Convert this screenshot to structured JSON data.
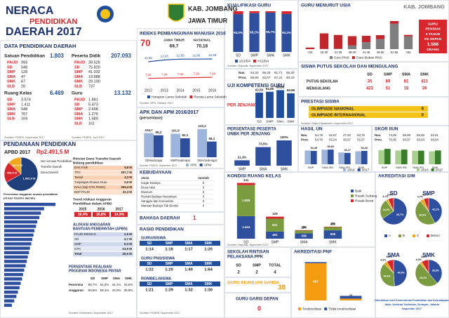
{
  "header": {
    "title1": "NERACA",
    "title2": "PENDIDIKAN",
    "title3": "DAERAH 2017",
    "region": "KAB. JOMBANG",
    "province": "JAWA TIMUR"
  },
  "data_daerah": {
    "title": "DATA PENDIDIKAN DAERAH",
    "groups": [
      {
        "label": "Satuan Pendidikan",
        "total": "1.803",
        "items": [
          [
            "PAUD",
            "993"
          ],
          [
            "SD",
            "548"
          ],
          [
            "SMP",
            "128"
          ],
          [
            "SMA",
            "47"
          ],
          [
            "SMK",
            "67"
          ],
          [
            "SLB",
            "20"
          ]
        ]
      },
      {
        "label": "Peserta Didik",
        "total": "207.093",
        "items": [
          [
            "PAUD",
            "39.526"
          ],
          [
            "SD",
            "75.820"
          ],
          [
            "SMP",
            "41.932"
          ],
          [
            "SMA",
            "19.888"
          ],
          [
            "SMK",
            "29.190"
          ],
          [
            "SLB",
            "737"
          ]
        ]
      },
      {
        "label": "Ruang Kelas",
        "total": "6.469",
        "items": [
          [
            "SD",
            "3.574"
          ],
          [
            "SMP",
            "1.411"
          ],
          [
            "SMA",
            "548"
          ],
          [
            "SMK",
            "767"
          ],
          [
            "SLB",
            "169"
          ]
        ]
      },
      {
        "label": "Guru",
        "total": "13.132",
        "items": [
          [
            "PAUD",
            "1.841"
          ],
          [
            "SD",
            "5.473"
          ],
          [
            "SMP",
            "2.698"
          ],
          [
            "SMA",
            "1.276"
          ],
          [
            "SMK",
            "1.689"
          ],
          [
            "SLB",
            "161"
          ]
        ]
      }
    ],
    "sources": [
      "Sumber: PDSPK, Nopember 2017",
      "Sumber: PDSPK, Juni 2017"
    ]
  },
  "ipm": {
    "title": "INDEKS PEMBANGUNAN MANUSIA 2016",
    "value": "70",
    "compare": [
      [
        "JAWA TIMUR",
        "69,7"
      ],
      [
        "NASIONAL",
        "70,18"
      ]
    ],
    "chart": {
      "type": "line",
      "x": [
        "2012",
        "2013",
        "2014",
        "2015",
        "2016"
      ],
      "ylim": [
        5,
        15
      ],
      "series": [
        {
          "name": "Harapan Lama Sekolah",
          "color": "#1f4e9c",
          "values": [
            11.92,
            12.43,
            12.65,
            12.66,
            12.69
          ],
          "value_labels": [
            "11,92",
            "12,43",
            "12,65",
            "12,66",
            "12,69"
          ]
        },
        {
          "name": "Rerata Lama Sekolah",
          "color": "#d9262c",
          "values": [
            7.37,
            7.46,
            7.52,
            7.59,
            7.68
          ],
          "value_labels": [
            "7,37",
            "7,46",
            "7,52",
            "7,59",
            "7,68"
          ]
        }
      ]
    },
    "source": "Sumber: BPS, Oktober 2017"
  },
  "kualifikasi": {
    "title": "KUALIFIKASI GURU",
    "chart": {
      "type": "bar",
      "stacked": true,
      "categories": [
        "SD",
        "SMP",
        "SMA",
        "SMK"
      ],
      "ylim": [
        0,
        100
      ],
      "series": [
        {
          "name": "≥S1/D4",
          "color": "#2e4f9e",
          "values": [
            93.0,
            95.2,
            96.7,
            93.2
          ],
          "value_labels": [
            "93,0%",
            "95,2%",
            "96,7%",
            "93,2%"
          ]
        },
        {
          "name": "<S1/D4",
          "color": "#d9262c",
          "values": [
            7.0,
            4.8,
            3.3,
            6.8
          ]
        }
      ]
    },
    "source": "Sumber: Dapodik, Nopember 2017"
  },
  "uji": {
    "title": "UJI KOMPETENSI GURU",
    "subtitle": "PER JENJANG",
    "table": [
      [
        "Nas.",
        "54,33",
        "59,25",
        "61,71",
        "58,30"
      ],
      [
        "Prov.",
        "58,90",
        "63,07",
        "67,31",
        "60,33"
      ]
    ],
    "chart": {
      "type": "bar",
      "categories": [
        "SD",
        "SMP",
        "SMA",
        "SMK"
      ],
      "ylim": [
        0,
        80
      ],
      "series": [
        {
          "color": "#1f4e9c",
          "values": [
            62.5,
            64.85,
            68.8,
            60.86
          ],
          "value_labels": [
            "62,50",
            "64,85",
            "68,80",
            "60,86"
          ]
        }
      ]
    }
  },
  "usia": {
    "title": "GURU MENURUT USIA",
    "region": "KAB. JOMBANG",
    "chart": {
      "type": "bar",
      "stacked": true,
      "categories": [
        "<25",
        "26-30",
        "31-35",
        "36-40",
        "41-45",
        "46-50",
        "51-55",
        ">55"
      ],
      "ylim": [
        0,
        4000
      ],
      "series": [
        {
          "name": "Guru PNS",
          "color": "#7f7f7f",
          "values": [
            0,
            20,
            54,
            400,
            760,
            1100,
            2780,
            1400
          ]
        },
        {
          "name": "Guru Bukan PNS",
          "color": "#c0272d",
          "values": [
            174,
            1709,
            1500,
            1025,
            700,
            430,
            300,
            160
          ]
        }
      ]
    },
    "note": [
      "GURU",
      "PENSIUN",
      "5 TAHUN",
      "KE DEPAN",
      "1.566",
      "ORANG"
    ],
    "source": "Sumber: Dapodik, Nopember 2017"
  },
  "putus": {
    "title": "SISWA PUTUS SEKOLAH DAN MENGULANG",
    "header": [
      "SD",
      "SMP",
      "SMA",
      "SMK"
    ],
    "rows": [
      [
        "PUTUS SEKOLAH",
        "35",
        "89",
        "81",
        "411"
      ],
      [
        "MENGULANG",
        "423",
        "51",
        "18",
        "39"
      ]
    ]
  },
  "prestasi": {
    "title": "PRESTASI SISWA",
    "rows": [
      [
        "OLIMPIADE NASIONAL",
        "6"
      ],
      [
        "OLIMPIADE INTERNASIONAL",
        "0"
      ]
    ],
    "source": "Sumber: Ditjen Dikdasmen, Nopember 2017"
  },
  "pendanaan": {
    "title": "PENDANAAN PENDIDIKAN",
    "apbd_label": "APBD 2017",
    "apbd": "Rp2.491,5 M",
    "pie": {
      "type": "pie",
      "categories": [
        "Non Urusan Pendidikan",
        "Transfer Daerah",
        "Dana Daerah"
      ],
      "values": [
        1665.3,
        498.5,
        327.0
      ],
      "value_labels": [
        "1.665,3 M",
        "498,5 M",
        "327,0 M"
      ],
      "colors": [
        "#1f3f7a",
        "#d9262c",
        "#f3a71b"
      ]
    },
    "rincian_title": [
      "Rincian Dana Transfer Daerah",
      "Bidang pendidikan"
    ],
    "rincian": [
      [
        "DAK Fisik",
        "9,8 M"
      ],
      [
        "TPG",
        "207,7 M"
      ],
      [
        "Tamsil",
        "4,3 M"
      ],
      [
        "Tunjangan Khusus Guru",
        "0,0 M"
      ],
      [
        "DAU (Gaji GTK PNSD)",
        "254,4 M"
      ],
      [
        "BOP PAUD",
        "22,3 M"
      ]
    ],
    "trend_title": [
      "Trend Alokasi Anggaran",
      "Pendidikan dalam APBD"
    ],
    "trend_years": [
      "2015",
      "2016",
      "2017"
    ],
    "trend_values": [
      "16,4%",
      "16,8%",
      "14,9%"
    ],
    "apbn_title": [
      "ALOKASI ANGGARAN",
      "BANTUAN PEMERINTAH (APBN)"
    ],
    "apbn": [
      [
        "PAUD-DIKMAS",
        "1,6 M"
      ],
      [
        "SD",
        "4,7 M"
      ],
      [
        "SMP",
        "0,3 M"
      ],
      [
        "GTK",
        "23,9 M"
      ],
      [
        "Total",
        "30,5 M"
      ]
    ],
    "pip_title": [
      "PERSENTASE REALISASI",
      "PROGRAM INDONESIA PINTAR"
    ],
    "pip_header": [
      "SD",
      "SMP",
      "SMA",
      "SMK"
    ],
    "pip": [
      [
        "Penerima",
        "58,7%",
        "51,5%",
        "41,1%",
        "34,6%"
      ],
      [
        "Anggaran",
        "60,6%",
        "59,1%",
        "43,0%",
        "35,9%"
      ]
    ],
    "bars_title": [
      "Persentase anggaran urusan pendidikan",
      "(di luar transfer daerah)"
    ],
    "bars": {
      "type": "bar",
      "horizontal": true,
      "categories": [
        null,
        null,
        null,
        null,
        null,
        null,
        null,
        null,
        null,
        null,
        null,
        null,
        null,
        null,
        null,
        null,
        null,
        null,
        null,
        null,
        null,
        null,
        null,
        null
      ],
      "ylim": [
        0,
        30
      ],
      "color": "#2e4f9e",
      "values": [
        26.1,
        20.3,
        18.7,
        17.9,
        16.8,
        16.2,
        15.4,
        14.9,
        14.3,
        13.8,
        13.1,
        12.6,
        12.0,
        11.5,
        10.9,
        10.2,
        9.6,
        9.1,
        8.4,
        7.8,
        7.0,
        6.2,
        5.1,
        3.9
      ]
    },
    "source": "Sumber: Kemenkeu, Nopember 2017"
  },
  "apk": {
    "title": "APK DAN APM 2016/2017",
    "subtitle": "(persentase)",
    "chart": {
      "type": "bar",
      "categories": [
        "SD/sederajat",
        "SMP/sederajat",
        "SMA/sederajat"
      ],
      "ylim": [
        0,
        140
      ],
      "series": [
        {
          "name": "APK",
          "color": "#9db5dc",
          "values": [
            104.7,
            101.9,
            122.2
          ],
          "value_labels": [
            "104,7",
            "101,9",
            "122,2"
          ]
        },
        {
          "name": "APM",
          "color": "#2e4f9e",
          "values": [
            95.2,
            82.1,
            68.1
          ],
          "value_labels": [
            "95,2",
            "82,1",
            "68,1"
          ]
        }
      ]
    },
    "source": "Sumber: PDSPK, Nopember 2017"
  },
  "kebudayaan": {
    "title": "KEBUDAYAAN",
    "header": [
      "Jenis",
      "Jumlah"
    ],
    "rows": [
      [
        "Cagar Budaya",
        "6"
      ],
      [
        "Desa Adat",
        "0"
      ],
      [
        "Museum",
        "0"
      ],
      [
        "Rumah Budaya Nusantara",
        "0"
      ],
      [
        "Sanggar dan Komunitas",
        "0"
      ],
      [
        "Warisan Budaya Tak Benda",
        "0"
      ]
    ]
  },
  "bahasa": {
    "title": "BAHASA DAERAH",
    "value": "1"
  },
  "rasio": {
    "title": "RASIO PENDIDIKAN",
    "header": [
      "SD",
      "SMP",
      "SMA",
      "SMK"
    ],
    "groups": [
      {
        "label": "GURU/SISWA",
        "values": [
          "1:14",
          "1:16",
          "1:17",
          "1:20"
        ]
      },
      {
        "label": "GURU PNS/SISWA",
        "values": [
          "1:22",
          "1:20",
          "1:40",
          "1:64"
        ]
      },
      {
        "label": "ROMBEL/SISWA",
        "values": [
          "1:21",
          "1:29",
          "1:32",
          "1:30"
        ]
      }
    ],
    "source": "Sumber: PDSPK, Nopember 2017"
  },
  "unbk": {
    "title": [
      "PERSENTASE PESERTA",
      "UNBK PER JENJANG"
    ],
    "chart": {
      "type": "bar",
      "categories": [
        "SMP",
        "SMA",
        "SMK"
      ],
      "ylim": [
        0,
        100
      ],
      "series": [
        {
          "color": "#2e4f9e",
          "values": [
            21.3,
            73.5,
            100.0
          ],
          "value_labels": [
            "21,3%",
            "73,5%",
            "100%"
          ]
        }
      ]
    }
  },
  "hasil_un": {
    "title": "HASIL UN",
    "table": [
      [
        "Nas.",
        "54,78",
        "62,87",
        "47,93",
        "53,75"
      ],
      [
        "Prov.",
        "54,78",
        "55,04",
        "48,67",
        "55,57"
      ]
    ],
    "chart": {
      "type": "bar",
      "categories": [
        "SMP",
        "SMA IPA",
        "SMA IPS",
        "SMK"
      ],
      "ylim": [
        0,
        80
      ],
      "series": [
        {
          "name": "2016",
          "color": "#9db5dc",
          "values": [
            56.1,
            59.2,
            47.9,
            52.8
          ]
        },
        {
          "name": "2017",
          "color": "#2e4f9e",
          "values": [
            54.45,
            59.69,
            46.17,
            54.32
          ],
          "value_labels": [
            "54,45",
            "59,69",
            "46,17",
            "54,32"
          ]
        }
      ]
    }
  },
  "iiun": {
    "title": "SKOR IIUN",
    "table": [
      [
        "Nas.",
        "74,05",
        "68,99",
        "65,85",
        "62,61"
      ],
      [
        "Prov.",
        "76,05",
        "66,97",
        "65,54",
        "68,84"
      ]
    ],
    "chart": {
      "type": "bar",
      "categories": [
        "SMP",
        "SMA IPA",
        "SMA IPS",
        "SMK"
      ],
      "ylim": [
        0,
        100
      ],
      "series": [
        {
          "name": "2016",
          "color": "#a9d08e",
          "values": [
            72.0,
            70.1,
            68.2,
            66.0
          ]
        },
        {
          "name": "2017",
          "color": "#3a7d2c",
          "values": [
            78.2,
            74.6,
            69.1,
            70.3
          ]
        }
      ]
    }
  },
  "kondisi": {
    "title": "KONDISI RUANG KELAS",
    "chart": {
      "type": "bar",
      "stacked": true,
      "categories": [
        "SD",
        "SMP",
        "SMA",
        "SMK"
      ],
      "ylim": [
        0,
        3600
      ],
      "series": [
        {
          "name": "Baik",
          "color": "#2e4f9e",
          "values": [
            1444,
            461,
            336,
            536
          ],
          "value_labels": [
            "1.444",
            "461",
            "336",
            "536"
          ]
        },
        {
          "name": "Rusak Sedang",
          "color": "#7a9b3e",
          "values": [
            1989,
            821,
            184,
            206
          ],
          "value_labels": [
            "1.989",
            "821",
            "184",
            "206"
          ]
        },
        {
          "name": "Rusak Berat",
          "color": "#d9262c",
          "values": [
            141,
            129,
            28,
            25
          ],
          "value_labels": [
            "141",
            "129",
            "28",
            "25"
          ]
        }
      ]
    },
    "source": "Sumber: Dapodik, Nopember 2017"
  },
  "akreditasi": {
    "title": "AKREDITASI S/M",
    "pies": [
      {
        "type": "pie",
        "title": "SD",
        "categories": [
          "A",
          "B",
          "C",
          "Belum"
        ],
        "values": [
          65.7,
          24.6,
          3.1,
          6.6
        ],
        "value_labels": [
          "65,7%",
          "24,6%",
          "3,1%",
          "6,6%"
        ],
        "colors": [
          "#2e4f9e",
          "#7a9b3e",
          "#f3a71b",
          "#d9262c"
        ]
      },
      {
        "type": "pie",
        "title": "SMP",
        "categories": [
          "A",
          "B",
          "C",
          "Belum"
        ],
        "values": [
          42.2,
          46.9,
          4.7,
          6.2
        ],
        "value_labels": [
          "42,2%",
          "46,9%",
          "4,7%",
          "6,2%"
        ],
        "colors": [
          "#2e4f9e",
          "#7a9b3e",
          "#f3a71b",
          "#d9262c"
        ]
      },
      {
        "type": "pie",
        "title": "SMA",
        "categories": [
          "A",
          "B",
          "C",
          "Belum"
        ],
        "values": [
          48.9,
          38.3,
          4.3,
          8.5
        ],
        "value_labels": [
          "48,9%",
          "38,3%",
          "4,3%",
          "8,5%"
        ],
        "colors": [
          "#2e4f9e",
          "#7a9b3e",
          "#f3a71b",
          "#d9262c"
        ]
      },
      {
        "type": "pie",
        "title": "SMK",
        "categories": [
          "A",
          "B",
          "C",
          "Belum"
        ],
        "values": [
          38.9,
          49.3,
          3.0,
          8.8
        ],
        "value_labels": [
          "38,9%",
          "49,3%",
          "3,0%",
          "8,8%"
        ],
        "colors": [
          "#2e4f9e",
          "#7a9b3e",
          "#f3a71b",
          "#d9262c"
        ]
      }
    ]
  },
  "rintisan": {
    "title": [
      "SEKOLAH RINTISAN",
      "PELAKSANA PPK"
    ],
    "header": [
      "SD",
      "SMP",
      "TOTAL"
    ],
    "values": [
      "2",
      "2",
      "4"
    ]
  },
  "ganda": {
    "title": "GURU KEAHLIAN GANDA",
    "value": "38"
  },
  "garis_depan": {
    "title": "GURU GARIS DEPAN",
    "value": "0"
  },
  "pnf": {
    "title": "AKREDITASI PNF",
    "chart": {
      "type": "bar",
      "stacked": true,
      "categories": [
        null,
        null
      ],
      "ylim": [
        0,
        460
      ],
      "series": [
        {
          "name": "Terakreditasi",
          "color": "#f39c12",
          "values": [
            407,
            20
          ],
          "value_labels": [
            "407",
            "20"
          ]
        },
        {
          "name": "Tidak terakreditasi",
          "color": "#2e4f9e",
          "values": [
            12,
            30
          ]
        }
      ]
    }
  },
  "footer": [
    "Diterbitkan oleh Kementerian Pendidikan dan Kebudayaan",
    "Jalan Jenderal Sudirman, Senayan, Jakarta",
    "Nopember 2017"
  ]
}
